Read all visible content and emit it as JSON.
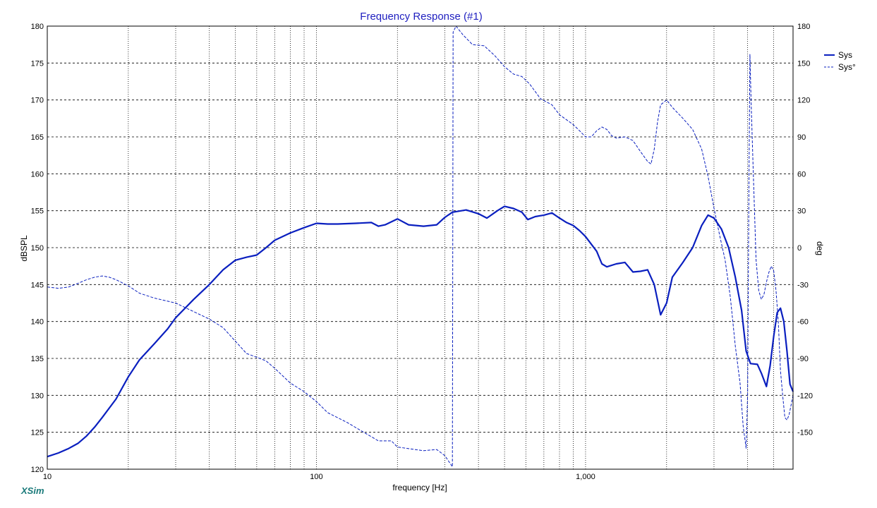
{
  "chart_data": {
    "type": "line",
    "title": "Frequency Response (#1)",
    "xlabel": "frequency [Hz]",
    "ylabel_left": "dBSPL",
    "ylabel_right": "deg",
    "x_scale": "log",
    "xlim": [
      10,
      5900
    ],
    "ylim_left": [
      120,
      180
    ],
    "ylim_right": [
      -180,
      180
    ],
    "x_tick_labels": [
      {
        "x": 10,
        "label": "10"
      },
      {
        "x": 100,
        "label": "100"
      },
      {
        "x": 1000,
        "label": "1,000"
      }
    ],
    "y_left_ticks": [
      120,
      125,
      130,
      135,
      140,
      145,
      150,
      155,
      160,
      165,
      170,
      175,
      180
    ],
    "y_right_ticks": [
      -150,
      -120,
      -90,
      -60,
      -30,
      0,
      30,
      60,
      90,
      120,
      150,
      180
    ],
    "grid": true,
    "legend_position": "top-right",
    "series": [
      {
        "name": "Sys",
        "axis": "left",
        "style": "solid",
        "color": "#0a1fbf",
        "points": [
          [
            10,
            121.7
          ],
          [
            11,
            122.2
          ],
          [
            12,
            122.8
          ],
          [
            13,
            123.5
          ],
          [
            14,
            124.5
          ],
          [
            15,
            125.7
          ],
          [
            16,
            127.0
          ],
          [
            18,
            129.5
          ],
          [
            20,
            132.5
          ],
          [
            22,
            134.8
          ],
          [
            25,
            137.0
          ],
          [
            28,
            139.0
          ],
          [
            30,
            140.5
          ],
          [
            35,
            143.0
          ],
          [
            40,
            145.0
          ],
          [
            45,
            147.0
          ],
          [
            50,
            148.3
          ],
          [
            55,
            148.7
          ],
          [
            60,
            149.0
          ],
          [
            65,
            150.0
          ],
          [
            70,
            151.0
          ],
          [
            80,
            152.0
          ],
          [
            90,
            152.7
          ],
          [
            100,
            153.3
          ],
          [
            110,
            153.2
          ],
          [
            120,
            153.2
          ],
          [
            140,
            153.3
          ],
          [
            160,
            153.4
          ],
          [
            170,
            152.9
          ],
          [
            180,
            153.1
          ],
          [
            200,
            153.9
          ],
          [
            220,
            153.1
          ],
          [
            250,
            152.9
          ],
          [
            280,
            153.1
          ],
          [
            300,
            154.1
          ],
          [
            320,
            154.8
          ],
          [
            360,
            155.1
          ],
          [
            400,
            154.6
          ],
          [
            430,
            154.0
          ],
          [
            470,
            155.0
          ],
          [
            500,
            155.6
          ],
          [
            540,
            155.3
          ],
          [
            580,
            154.8
          ],
          [
            610,
            153.8
          ],
          [
            650,
            154.2
          ],
          [
            700,
            154.4
          ],
          [
            750,
            154.7
          ],
          [
            800,
            154.0
          ],
          [
            850,
            153.4
          ],
          [
            900,
            153.0
          ],
          [
            950,
            152.3
          ],
          [
            1000,
            151.5
          ],
          [
            1100,
            149.5
          ],
          [
            1150,
            147.8
          ],
          [
            1200,
            147.4
          ],
          [
            1300,
            147.8
          ],
          [
            1400,
            148.0
          ],
          [
            1500,
            146.7
          ],
          [
            1600,
            146.8
          ],
          [
            1700,
            147.0
          ],
          [
            1800,
            145.0
          ],
          [
            1900,
            140.9
          ],
          [
            2000,
            142.5
          ],
          [
            2100,
            146.0
          ],
          [
            2300,
            148.0
          ],
          [
            2500,
            150.0
          ],
          [
            2700,
            153.0
          ],
          [
            2850,
            154.4
          ],
          [
            3000,
            154.0
          ],
          [
            3200,
            152.5
          ],
          [
            3400,
            150.0
          ],
          [
            3600,
            146.0
          ],
          [
            3800,
            141.5
          ],
          [
            3950,
            136.0
          ],
          [
            4100,
            134.3
          ],
          [
            4350,
            134.2
          ],
          [
            4500,
            133.0
          ],
          [
            4700,
            131.2
          ],
          [
            4850,
            134.0
          ],
          [
            5000,
            138.0
          ],
          [
            5150,
            141.2
          ],
          [
            5300,
            141.8
          ],
          [
            5450,
            140.0
          ],
          [
            5600,
            136.0
          ],
          [
            5750,
            131.5
          ],
          [
            5900,
            130.5
          ]
        ]
      },
      {
        "name": "Sys°",
        "axis": "right",
        "style": "dashed",
        "color": "#0a1fbf",
        "points": [
          [
            10,
            -32
          ],
          [
            11,
            -33
          ],
          [
            12,
            -32
          ],
          [
            13,
            -29
          ],
          [
            14,
            -26
          ],
          [
            15,
            -24
          ],
          [
            16,
            -23
          ],
          [
            17,
            -24
          ],
          [
            18,
            -26
          ],
          [
            20,
            -31
          ],
          [
            22,
            -37
          ],
          [
            25,
            -41
          ],
          [
            30,
            -45
          ],
          [
            35,
            -52
          ],
          [
            40,
            -58
          ],
          [
            45,
            -65
          ],
          [
            50,
            -76
          ],
          [
            55,
            -86
          ],
          [
            60,
            -89
          ],
          [
            65,
            -92
          ],
          [
            70,
            -98
          ],
          [
            80,
            -110
          ],
          [
            90,
            -117
          ],
          [
            100,
            -125
          ],
          [
            110,
            -134
          ],
          [
            130,
            -142
          ],
          [
            150,
            -150
          ],
          [
            170,
            -157
          ],
          [
            190,
            -157
          ],
          [
            200,
            -162
          ],
          [
            250,
            -165
          ],
          [
            280,
            -164
          ],
          [
            300,
            -169
          ],
          [
            320,
            -178
          ],
          [
            322,
            175
          ],
          [
            330,
            180
          ],
          [
            350,
            173
          ],
          [
            380,
            165
          ],
          [
            420,
            164
          ],
          [
            460,
            156
          ],
          [
            500,
            147
          ],
          [
            540,
            141
          ],
          [
            580,
            139
          ],
          [
            620,
            133
          ],
          [
            680,
            121
          ],
          [
            750,
            116
          ],
          [
            800,
            108
          ],
          [
            900,
            100
          ],
          [
            950,
            95
          ],
          [
            1000,
            90
          ],
          [
            1050,
            90
          ],
          [
            1100,
            95
          ],
          [
            1150,
            98
          ],
          [
            1200,
            96
          ],
          [
            1250,
            91
          ],
          [
            1300,
            89
          ],
          [
            1400,
            90
          ],
          [
            1500,
            87
          ],
          [
            1600,
            78
          ],
          [
            1700,
            70
          ],
          [
            1750,
            68
          ],
          [
            1800,
            80
          ],
          [
            1850,
            102
          ],
          [
            1900,
            116
          ],
          [
            2000,
            120
          ],
          [
            2100,
            114
          ],
          [
            2300,
            105
          ],
          [
            2500,
            96
          ],
          [
            2700,
            80
          ],
          [
            2850,
            58
          ],
          [
            3000,
            32
          ],
          [
            3150,
            10
          ],
          [
            3300,
            -10
          ],
          [
            3450,
            -40
          ],
          [
            3600,
            -80
          ],
          [
            3750,
            -110
          ],
          [
            3850,
            -145
          ],
          [
            3950,
            -163
          ],
          [
            4000,
            -120
          ],
          [
            4050,
            70
          ],
          [
            4080,
            157
          ],
          [
            4120,
            120
          ],
          [
            4200,
            60
          ],
          [
            4300,
            -10
          ],
          [
            4400,
            -35
          ],
          [
            4500,
            -42
          ],
          [
            4600,
            -38
          ],
          [
            4700,
            -28
          ],
          [
            4800,
            -20
          ],
          [
            4900,
            -15
          ],
          [
            5000,
            -19
          ],
          [
            5100,
            -35
          ],
          [
            5200,
            -60
          ],
          [
            5300,
            -100
          ],
          [
            5400,
            -120
          ],
          [
            5500,
            -138
          ],
          [
            5600,
            -140
          ],
          [
            5700,
            -136
          ],
          [
            5800,
            -128
          ],
          [
            5900,
            -120
          ]
        ]
      }
    ]
  },
  "footer": {
    "brand": "XSim"
  },
  "colors": {
    "line": "#0a1fbf",
    "title": "#2020c0",
    "grid": "#000000",
    "brand": "#1a7a7a"
  }
}
